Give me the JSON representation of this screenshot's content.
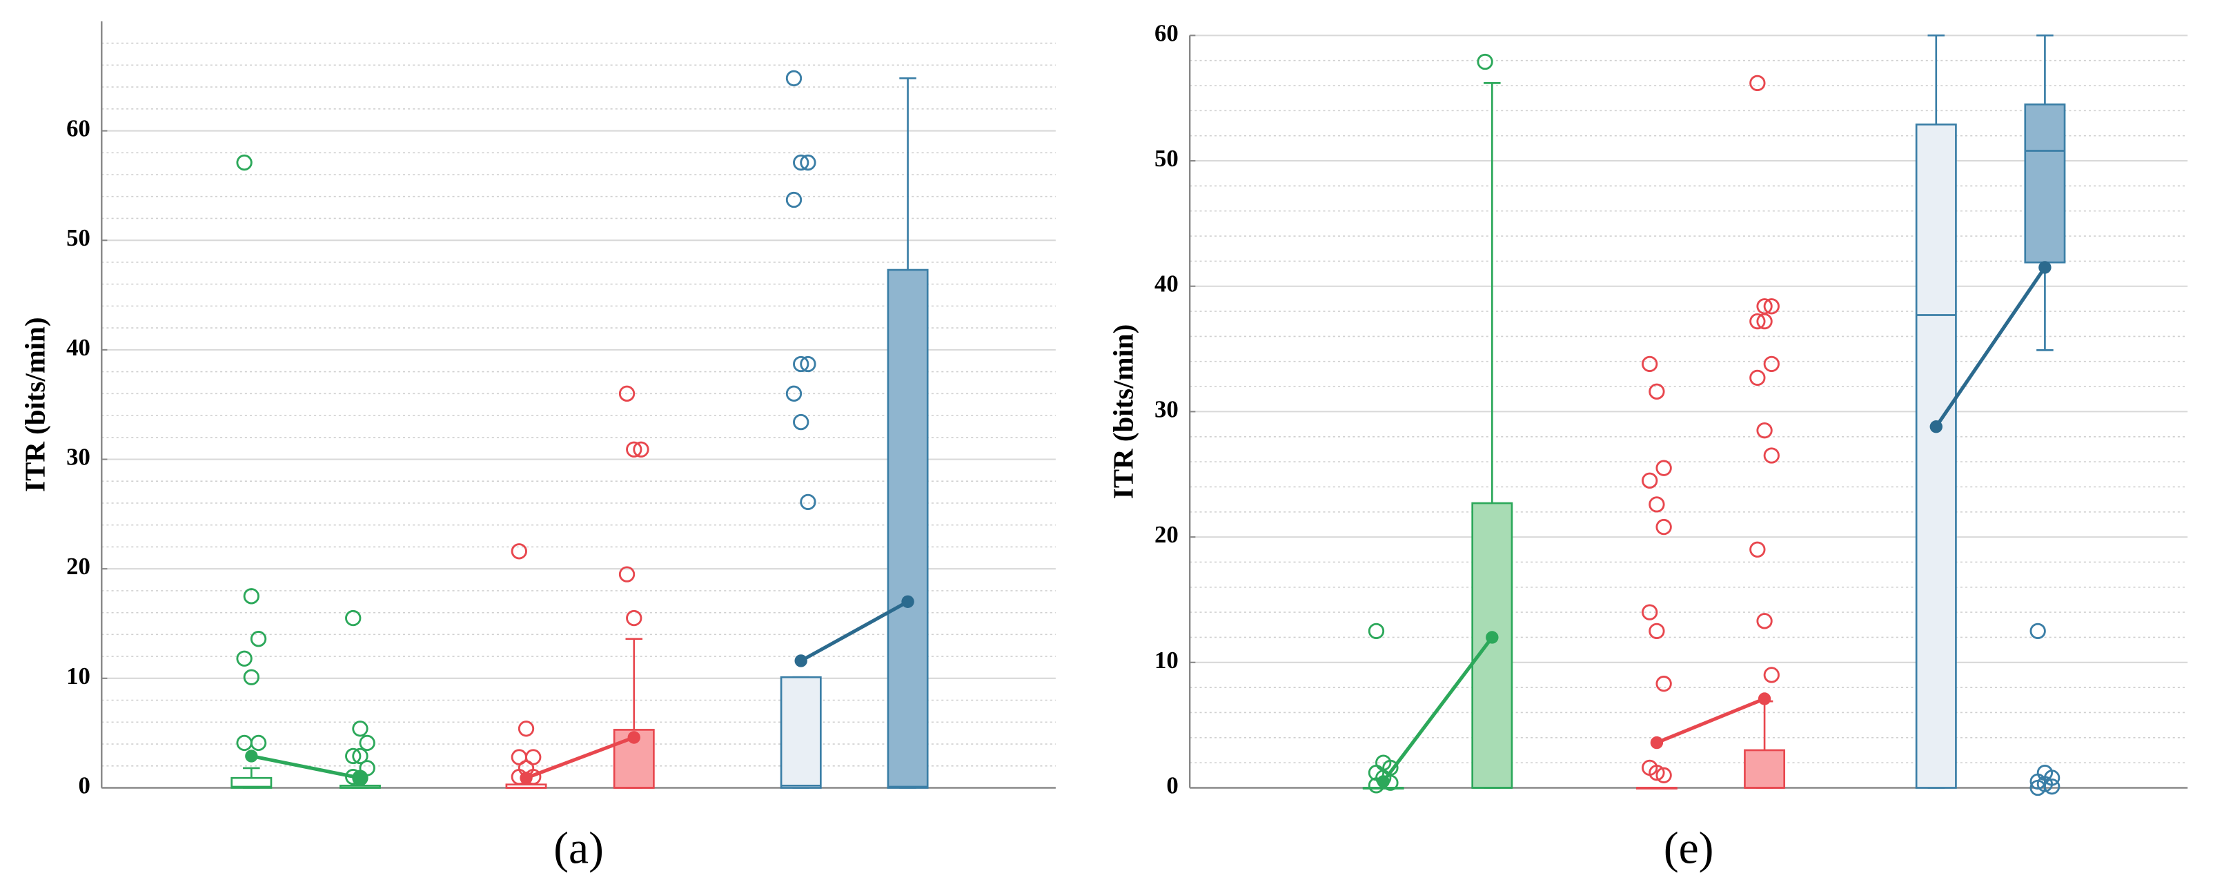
{
  "chart_data": [
    {
      "type": "box",
      "caption": "(a)",
      "y_label": "ITR (bits/min)",
      "ylim": [
        0,
        70
      ],
      "yticks": [
        0,
        10,
        20,
        30,
        40,
        50,
        60
      ],
      "grid": true,
      "minor_grid": true,
      "boxes": [
        {
          "color": "#2ca85a",
          "fill": "#ffffff",
          "q1": 0,
          "median": 0.1,
          "q3": 0.9,
          "whisker_low": 0,
          "whisker_high": 1.8,
          "mean": 2.9,
          "outliers": [
            57.1,
            17.5,
            13.6,
            11.8,
            10.1,
            4.1,
            4.1
          ]
        },
        {
          "color": "#2ca85a",
          "fill": "#a8dcb4",
          "q1": 0,
          "median": 0,
          "q3": 0.2,
          "whisker_low": 0,
          "whisker_high": 0.2,
          "mean": 0.9,
          "outliers": [
            15.5,
            5.4,
            4.1,
            2.9,
            2.9,
            1.8,
            1.0,
            0.9
          ]
        },
        {
          "color": "#e8474e",
          "fill": "#ffffff",
          "q1": 0,
          "median": 0,
          "q3": 0.3,
          "whisker_low": 0,
          "whisker_high": 0.3,
          "mean": 0.9,
          "outliers": [
            21.6,
            5.4,
            2.8,
            2.8,
            1.8,
            1.0,
            1.0
          ]
        },
        {
          "color": "#e8474e",
          "fill": "#f9a3a6",
          "q1": 0,
          "median": 0,
          "q3": 5.3,
          "whisker_low": 0,
          "whisker_high": 13.6,
          "mean": 4.6,
          "outliers": [
            36.0,
            30.9,
            30.9,
            19.5,
            15.5
          ]
        },
        {
          "color": "#3a7ea6",
          "fill": "#e9eff5",
          "q1": 0,
          "median": 0.2,
          "q3": 10.1,
          "whisker_low": 0,
          "whisker_high": 10.1,
          "mean": 11.6,
          "outliers": [
            64.8,
            57.1,
            57.1,
            53.7,
            38.7,
            38.7,
            36.0,
            33.4,
            26.1
          ]
        },
        {
          "color": "#3a7ea6",
          "fill": "#8fb5cf",
          "q1": 0,
          "median": 0.1,
          "q3": 47.3,
          "whisker_low": 0,
          "whisker_high": 64.8,
          "mean": 17.0,
          "outliers": []
        }
      ]
    },
    {
      "type": "box",
      "caption": "(e)",
      "y_label": "ITR (bits/min)",
      "ylim": [
        0,
        60
      ],
      "yticks": [
        0,
        10,
        20,
        30,
        40,
        50,
        60
      ],
      "grid": true,
      "minor_grid": true,
      "boxes": [
        {
          "color": "#2ca85a",
          "fill": "#ffffff",
          "q1": 0,
          "median": 0,
          "q3": 0,
          "whisker_low": 0,
          "whisker_high": 0,
          "mean": 0.5,
          "outliers": [
            12.5,
            2.0,
            1.6,
            1.2,
            0.8,
            0.4,
            0.2
          ]
        },
        {
          "color": "#2ca85a",
          "fill": "#a8dcb4",
          "q1": 0,
          "median": 0,
          "q3": 22.7,
          "whisker_low": 0,
          "whisker_high": 56.2,
          "mean": 12.0,
          "outliers": [
            57.9
          ]
        },
        {
          "color": "#e8474e",
          "fill": "#ffffff",
          "q1": 0,
          "median": 0,
          "q3": 0,
          "whisker_low": 0,
          "whisker_high": 0,
          "mean": 3.6,
          "outliers": [
            33.8,
            31.6,
            25.5,
            24.5,
            22.6,
            20.8,
            14.0,
            12.5,
            8.3,
            1.6,
            1.2,
            1.0
          ]
        },
        {
          "color": "#e8474e",
          "fill": "#f9a3a6",
          "q1": 0,
          "median": 0,
          "q3": 3.0,
          "whisker_low": 0,
          "whisker_high": 6.9,
          "mean": 7.1,
          "outliers": [
            56.2,
            38.4,
            38.4,
            37.2,
            37.2,
            33.8,
            32.7,
            28.5,
            26.5,
            19.0,
            13.3,
            9.0
          ]
        },
        {
          "color": "#3a7ea6",
          "fill": "#e9eff5",
          "q1": 0,
          "median": 37.7,
          "q3": 52.9,
          "whisker_low": 0,
          "whisker_high": 60,
          "mean": 28.8,
          "outliers": []
        },
        {
          "color": "#3a7ea6",
          "fill": "#8fb5cf",
          "q1": 41.9,
          "median": 50.8,
          "q3": 54.5,
          "whisker_low": 34.9,
          "whisker_high": 60,
          "mean": 41.5,
          "outliers": [
            12.5,
            1.2,
            0.8,
            0.5,
            0.3,
            0.1,
            0
          ]
        }
      ]
    }
  ]
}
